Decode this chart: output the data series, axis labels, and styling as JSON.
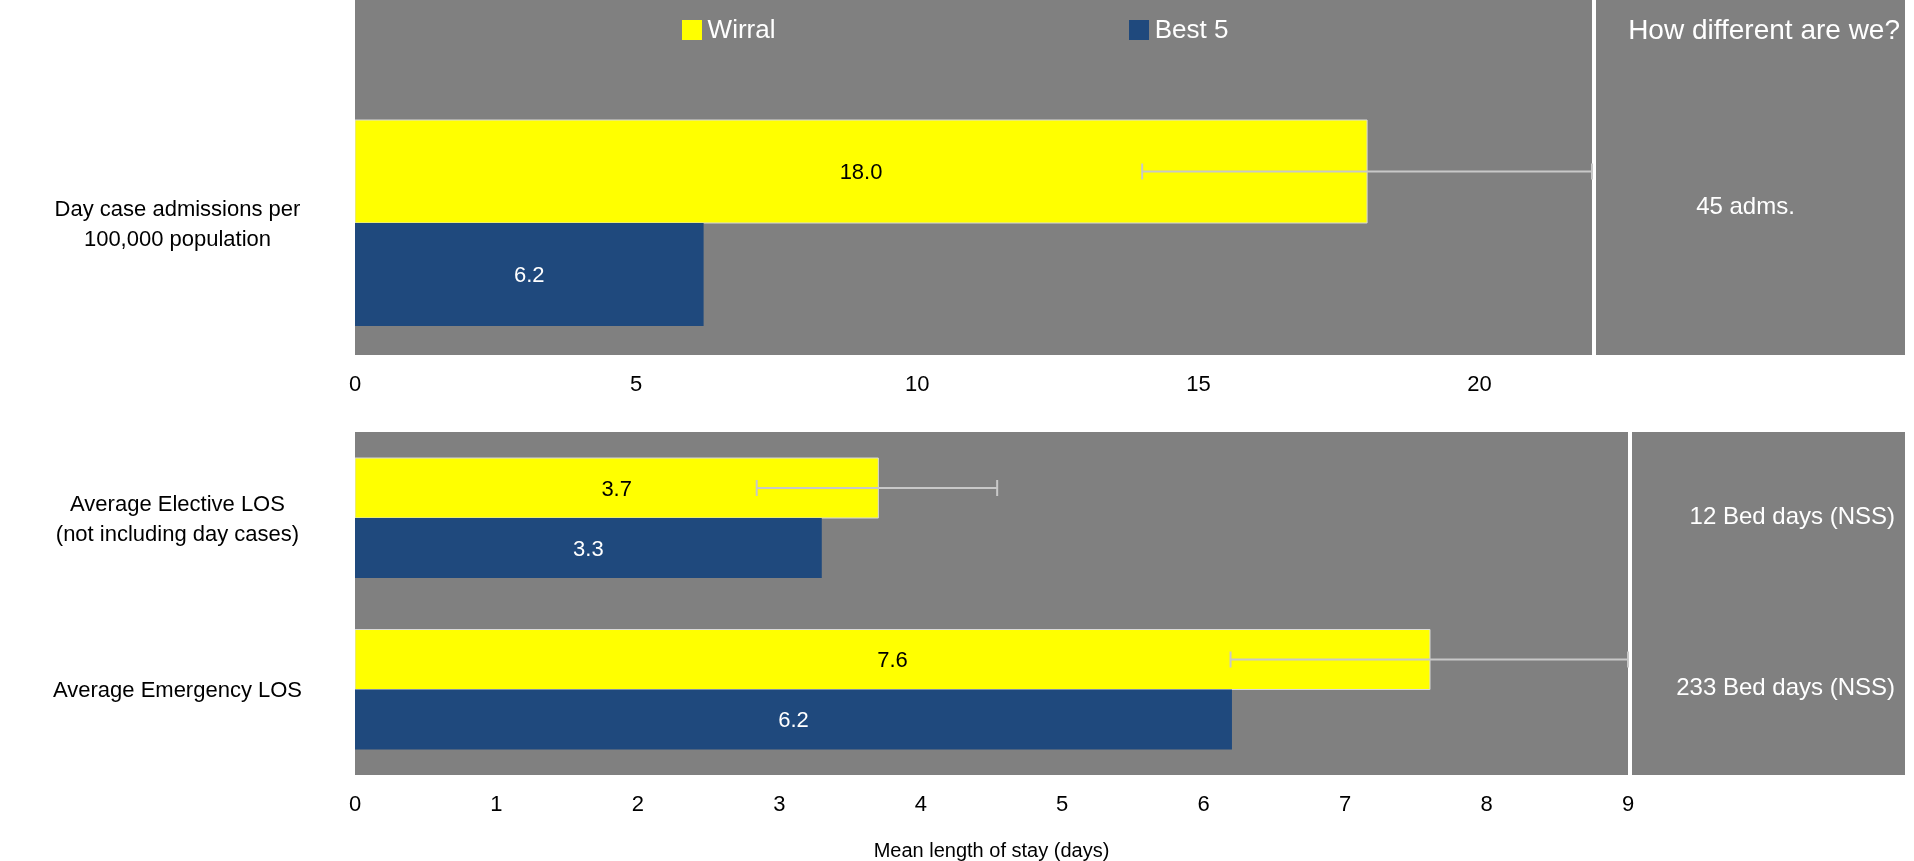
{
  "chart_data": [
    {
      "type": "bar",
      "orientation": "horizontal",
      "categories": [
        "Day case admissions per 100,000 population"
      ],
      "series": [
        {
          "name": "Wirral",
          "color": "#ffff00",
          "values": [
            18.0
          ],
          "value_labels": [
            "18.0"
          ],
          "errors": [
            [
              14.0,
              22.0
            ]
          ]
        },
        {
          "name": "Best 5",
          "color": "#1f497d",
          "values": [
            6.2
          ],
          "value_labels": [
            "6.2"
          ]
        }
      ],
      "xlim": [
        0,
        22
      ],
      "xticks": [
        0,
        5,
        10,
        15,
        20
      ],
      "legend": "top",
      "grid": false,
      "annotations": [
        "How different are we?",
        "45 adms."
      ]
    },
    {
      "type": "bar",
      "orientation": "horizontal",
      "categories": [
        "Average Elective LOS (not including day cases)",
        "Average Emergency LOS"
      ],
      "series": [
        {
          "color": "#ffff00",
          "values": [
            3.7,
            7.6
          ],
          "value_labels": [
            "3.7",
            "7.6"
          ],
          "errors": [
            [
              2.84,
              4.54
            ],
            [
              6.19,
              9.0
            ]
          ]
        },
        {
          "color": "#1f497d",
          "values": [
            3.3,
            6.2
          ],
          "value_labels": [
            "3.3",
            "6.2"
          ]
        }
      ],
      "xlim": [
        0,
        9
      ],
      "xticks": [
        0,
        1,
        2,
        3,
        4,
        5,
        6,
        7,
        8,
        9
      ],
      "xlabel": "Mean length of stay (days)",
      "legend": false,
      "grid": false,
      "annotations": [
        "12 Bed days (NSS)",
        "233 Bed days (NSS)"
      ]
    }
  ]
}
